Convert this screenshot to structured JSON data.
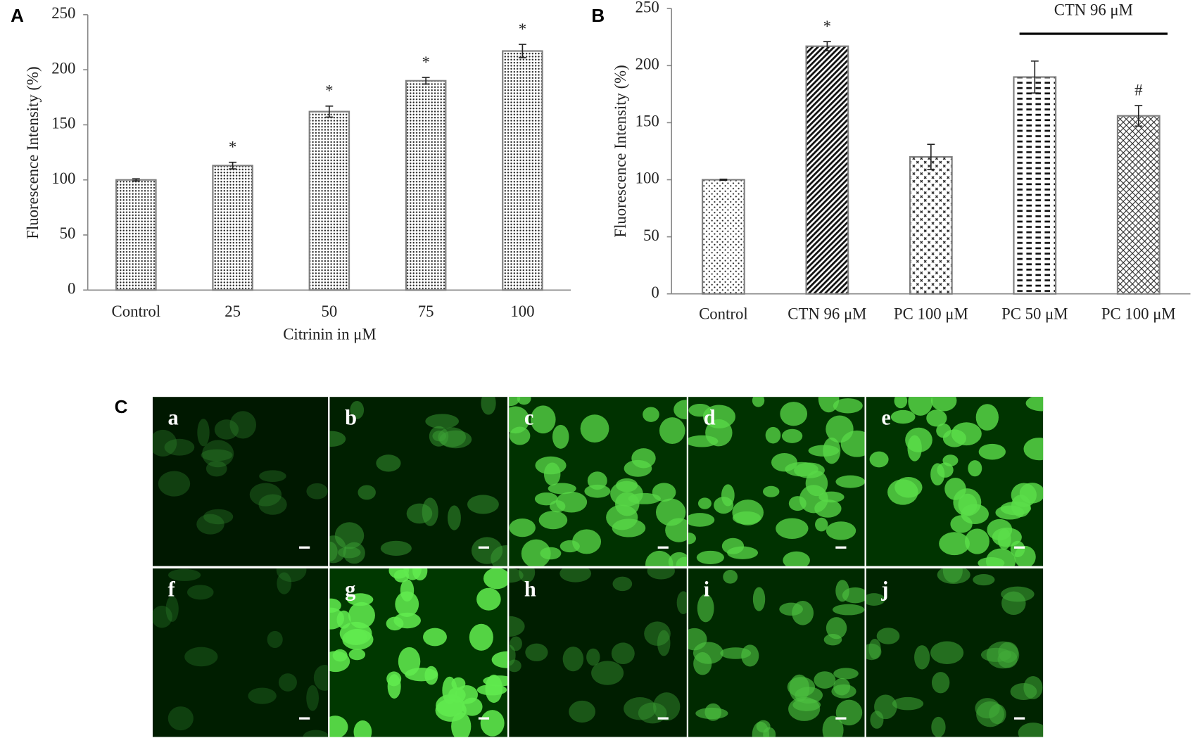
{
  "chart_data": [
    {
      "type": "bar",
      "panel": "A",
      "x_label": "Citrinin in μM",
      "y_label": "Fluorescence Intensity (%)",
      "categories": [
        "Control",
        "25",
        "50",
        "75",
        "100"
      ],
      "values": [
        100,
        113,
        162,
        190,
        217
      ],
      "errors": [
        1,
        3,
        5,
        3,
        6
      ],
      "annotations": [
        null,
        "*",
        "*",
        "*",
        "*"
      ],
      "color": "#808080",
      "ylim": [
        0,
        250
      ],
      "yticks": [
        0,
        50,
        100,
        150,
        200,
        250
      ]
    },
    {
      "type": "bar",
      "panel": "B",
      "y_label": "Fluorescence Intensity (%)",
      "bracket_label": "CTN 96 μM",
      "categories": [
        "Control",
        "CTN 96 μM",
        "PC 100 μM",
        "PC 50 μM",
        "PC 100 μM"
      ],
      "values": [
        100,
        217,
        120,
        190,
        156
      ],
      "errors": [
        0.5,
        4,
        11,
        14,
        9
      ],
      "annotations": [
        null,
        "*",
        null,
        null,
        "#"
      ],
      "color": "#808080",
      "ylim": [
        0,
        250
      ],
      "yticks": [
        0,
        50,
        100,
        150,
        200,
        250
      ]
    }
  ],
  "micrographs": {
    "panel": "C",
    "labels": [
      "a",
      "b",
      "c",
      "d",
      "e",
      "f",
      "g",
      "h",
      "i",
      "j"
    ]
  }
}
